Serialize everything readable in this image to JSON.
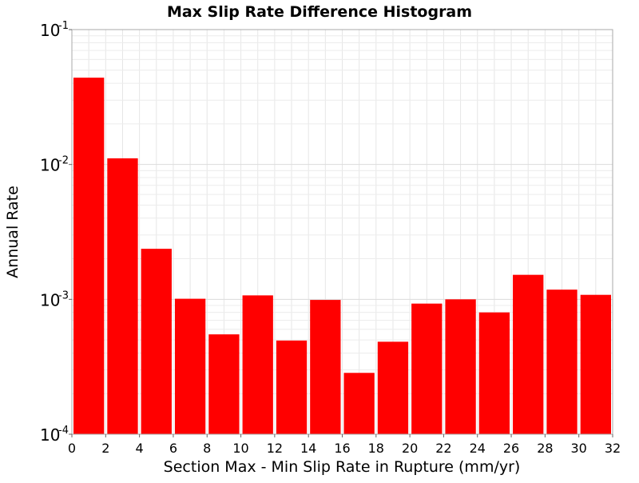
{
  "chart_data": {
    "type": "bar",
    "title": "Max Slip Rate Difference Histogram",
    "xlabel": "Section Max - Min Slip Rate in Rupture (mm/yr)",
    "ylabel": "Annual Rate",
    "bin_width": 2,
    "x_bin_starts": [
      0,
      2,
      4,
      6,
      8,
      10,
      12,
      14,
      16,
      18,
      20,
      22,
      24,
      26,
      28,
      30
    ],
    "values": [
      0.044,
      0.0111,
      0.00237,
      0.00101,
      0.00055,
      0.00107,
      0.000495,
      0.00099,
      0.000285,
      0.000485,
      0.00093,
      0.001,
      0.0008,
      0.00152,
      0.00118,
      0.00108
    ],
    "xlim": [
      0,
      32
    ],
    "ylim": [
      0.0001,
      0.1
    ],
    "yscale": "log",
    "x_ticks": [
      0,
      2,
      4,
      6,
      8,
      10,
      12,
      14,
      16,
      18,
      20,
      22,
      24,
      26,
      28,
      30,
      32
    ],
    "y_ticks": [
      {
        "value": 0.1,
        "base": "10",
        "exp": "-1"
      },
      {
        "value": 0.01,
        "base": "10",
        "exp": "-2"
      },
      {
        "value": 0.001,
        "base": "10",
        "exp": "-3"
      },
      {
        "value": 0.0001,
        "base": "10",
        "exp": "-4"
      }
    ],
    "bar_color": "#ff0000",
    "grid": true
  }
}
